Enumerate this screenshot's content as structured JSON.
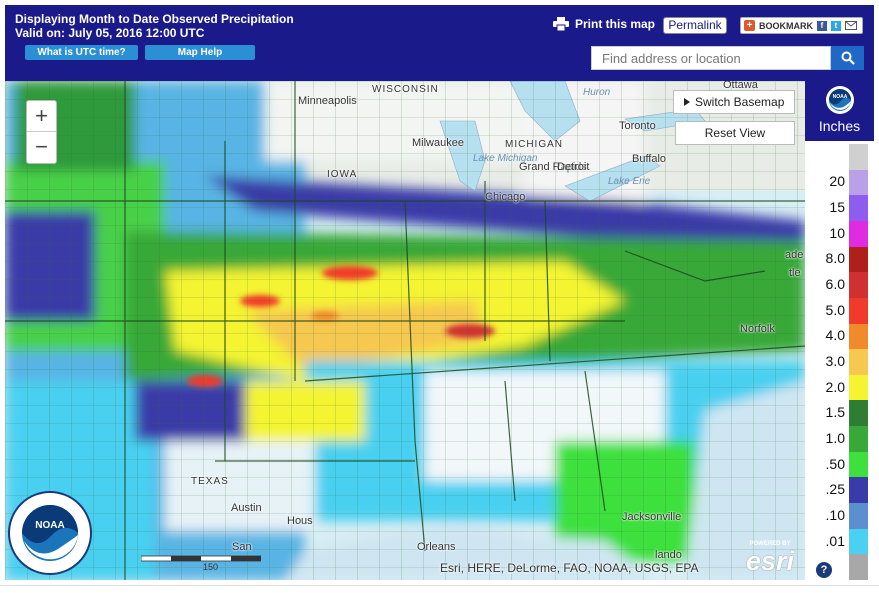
{
  "header": {
    "title": "Displaying Month to Date Observed Precipitation",
    "valid": "Valid on: July 05, 2016 12:00 UTC",
    "utc_button": "What is UTC time?",
    "maphelp_button": "Map Help",
    "print_label": "Print this map",
    "permalink_label": "Permalink",
    "bookmark_label": "BOOKMARK",
    "search_placeholder": "Find address or location"
  },
  "map": {
    "zoom_in": "+",
    "zoom_out": "−",
    "switch_basemap": "Switch Basemap",
    "reset_view": "Reset View",
    "places": {
      "ottawa": "Ottawa",
      "huron": "Huron",
      "toronto": "Toronto",
      "buffalo": "Buffalo",
      "lake_erie": "Lake Erie",
      "minneapolis": "Minneapolis",
      "wisconsin": "WISCONSIN",
      "milwaukee": "Milwaukee",
      "michigan": "MICHIGAN",
      "lake_michigan": "Lake Michigan",
      "grand_rapids": "Grand Rapids",
      "detroit": "Detroit",
      "chicago": "Chicago",
      "iowa": "IOWA",
      "norfolk": "Norfolk",
      "de": "ade",
      "tle": "tle",
      "austin": "Austin",
      "houston": "Hous",
      "orleans": "Orleans",
      "san": "San",
      "jacksonville": "Jacksonville",
      "orlando": "lando",
      "texas": "TEXAS"
    },
    "scale_label": "150",
    "attribution": "Esri, HERE, DeLorme, FAO, NOAA, USGS, EPA",
    "esri_powered": "POWERED BY",
    "esri_text": "esri",
    "noaa_text": "NOAA"
  },
  "legend": {
    "units": "Inches",
    "noaa_label": "NOAA",
    "help": "?",
    "bins": [
      {
        "label": "",
        "color": "#d0d0d0"
      },
      {
        "label": "20",
        "color": "#b9a0e8"
      },
      {
        "label": "15",
        "color": "#8f5cf0"
      },
      {
        "label": "10",
        "color": "#e02ce0"
      },
      {
        "label": "8.0",
        "color": "#b0201a"
      },
      {
        "label": "6.0",
        "color": "#d03030"
      },
      {
        "label": "5.0",
        "color": "#f03a2a"
      },
      {
        "label": "4.0",
        "color": "#f08a2a"
      },
      {
        "label": "3.0",
        "color": "#f6c850"
      },
      {
        "label": "2.0",
        "color": "#f4f432"
      },
      {
        "label": "1.5",
        "color": "#2e7d32"
      },
      {
        "label": "1.0",
        "color": "#38a838"
      },
      {
        "label": ".50",
        "color": "#3ee03e"
      },
      {
        "label": ".25",
        "color": "#3a3aa8"
      },
      {
        "label": ".10",
        "color": "#5b8fd0"
      },
      {
        "label": ".01",
        "color": "#4ad0f0"
      },
      {
        "label": "",
        "color": "#a8a8a8"
      }
    ]
  }
}
